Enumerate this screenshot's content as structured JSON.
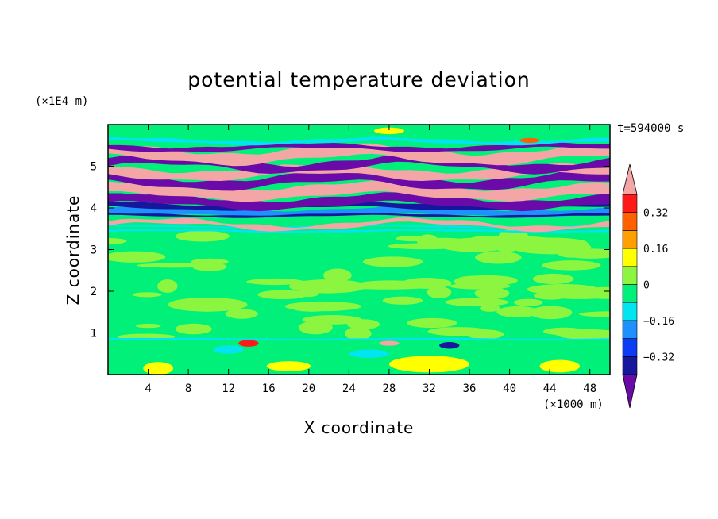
{
  "chart_data": {
    "type": "heatmap",
    "title": "potential temperature deviation",
    "xlabel": "X coordinate",
    "ylabel": "Z coordinate",
    "x_unit_label": "(×1000 m)",
    "y_unit_label": "(×1E4 m)",
    "time_label": "t=594000 s",
    "xlim": [
      0,
      50
    ],
    "ylim": [
      0,
      6
    ],
    "x_ticks": [
      4,
      8,
      12,
      16,
      20,
      24,
      28,
      32,
      36,
      40,
      44,
      48
    ],
    "y_ticks": [
      1,
      2,
      3,
      4,
      5
    ],
    "colorbar": {
      "levels": [
        -0.4,
        -0.32,
        -0.24,
        -0.16,
        -0.08,
        0,
        0.08,
        0.16,
        0.24,
        0.32,
        0.4
      ],
      "labels": [
        "0.32",
        "0.16",
        "0",
        "−0.16",
        "−0.32"
      ],
      "label_values": [
        0.32,
        0.16,
        0,
        -0.16,
        -0.32
      ],
      "colors": [
        "#6a0aa8",
        "#17179d",
        "#0c3cf5",
        "#1e90ff",
        "#00e5f0",
        "#00f07a",
        "#8cf540",
        "#ffff00",
        "#ffa000",
        "#ff6000",
        "#ff1a1a",
        "#f4a6a6"
      ],
      "over_color": "#f4a6a6",
      "under_color": "#6a0aa8"
    },
    "field": {
      "background_level": "0 to 0.08",
      "layers": [
        {
          "z_range": [
            0.0,
            0.8
          ],
          "description": "mixed, mostly 0 to 0.08 with yellow and cyan patches"
        },
        {
          "z_range": [
            0.8,
            0.9
          ],
          "description": "thin cyan line with -0.32 and 0.32 blobs"
        },
        {
          "z_range": [
            0.9,
            3.4
          ],
          "description": "green band, 0 to 0.16"
        },
        {
          "z_range": [
            3.4,
            4.0
          ],
          "description": "alternating cyan, blue and dark-blue thin layers"
        },
        {
          "z_range": [
            4.0,
            5.6
          ],
          "description": "alternating bands below -0.4 (purple) and above 0.4 (pink)"
        },
        {
          "z_range": [
            5.6,
            6.0
          ],
          "description": "green with yellow patches"
        }
      ]
    }
  }
}
